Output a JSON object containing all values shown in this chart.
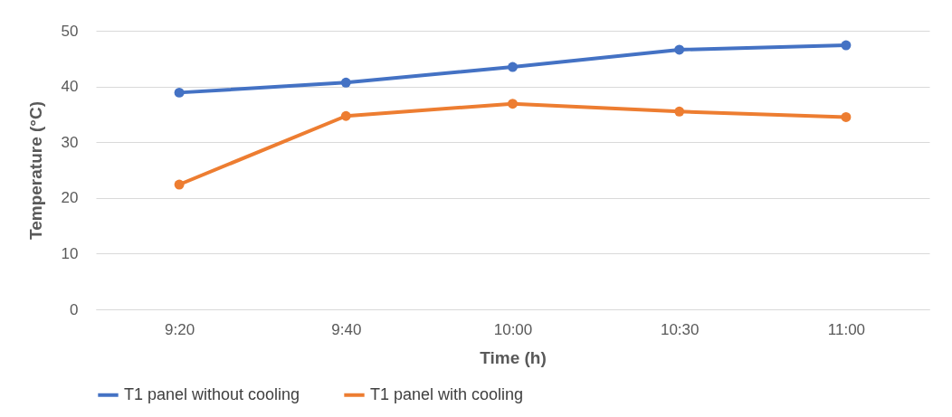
{
  "chart_data": {
    "type": "line",
    "xlabel": "Time (h)",
    "ylabel": "Temperature (°C)",
    "categories": [
      "9:20",
      "9:40",
      "10:00",
      "10:30",
      "11:00"
    ],
    "series": [
      {
        "name": "T1 panel without cooling",
        "color": "#4472c4",
        "values": [
          38.9,
          40.7,
          43.5,
          46.6,
          47.4
        ]
      },
      {
        "name": "T1 panel with cooling",
        "color": "#ed7d31",
        "values": [
          22.4,
          34.7,
          36.9,
          35.5,
          34.5
        ]
      }
    ],
    "ylim": [
      0,
      50
    ],
    "yticks": [
      0,
      10,
      20,
      30,
      40,
      50
    ],
    "grid": "y",
    "legend": "bottom",
    "marker": "circle",
    "line_style": "solid"
  }
}
